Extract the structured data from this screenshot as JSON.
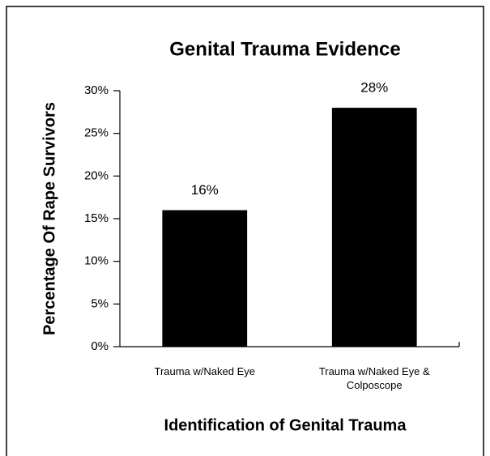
{
  "chart_data": {
    "type": "bar",
    "title": "Genital Trauma Evidence",
    "xlabel": "Identification of Genital Trauma",
    "ylabel": "Percentage Of Rape Survivors",
    "categories": [
      "Trauma w/Naked Eye",
      "Trauma w/Naked Eye & Colposcope"
    ],
    "values": [
      16,
      28
    ],
    "value_labels": [
      "16%",
      "28%"
    ],
    "color": "#000000",
    "ylim": [
      0,
      30
    ],
    "yticks": [
      {
        "value": 0,
        "label": "0%"
      },
      {
        "value": 5,
        "label": "5%"
      },
      {
        "value": 10,
        "label": "10%"
      },
      {
        "value": 15,
        "label": "15%"
      },
      {
        "value": 20,
        "label": "20%"
      },
      {
        "value": 25,
        "label": "25%"
      },
      {
        "value": 30,
        "label": "30%"
      }
    ],
    "grid": false
  }
}
